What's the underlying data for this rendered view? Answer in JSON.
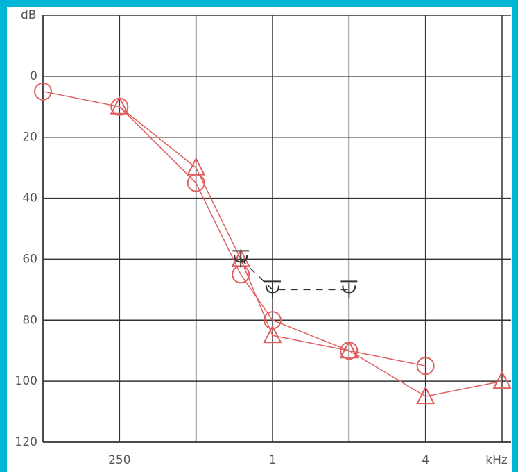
{
  "chart_data": {
    "type": "line",
    "y_label": "dB",
    "x_label": "kHz",
    "xlog": true,
    "xlim": [
      125,
      8000
    ],
    "xticks": [
      250,
      {
        "value": 1000,
        "label": "1"
      },
      {
        "value": 4000,
        "label": "4"
      }
    ],
    "xminor": [
      125,
      500,
      2000,
      8000
    ],
    "ylim": [
      120,
      -20
    ],
    "yticks": [
      0,
      20,
      40,
      60,
      80,
      100,
      120
    ],
    "grid": true,
    "series": [
      {
        "marker": "circle",
        "color": "#e06060",
        "dash": false,
        "x": [
          125,
          250,
          500,
          750,
          1000,
          2000,
          4000
        ],
        "values": [
          5,
          10,
          35,
          65,
          80,
          90,
          95
        ]
      },
      {
        "marker": "triangle",
        "color": "#e06060",
        "dash": false,
        "x": [
          250,
          500,
          750,
          1000,
          2000,
          4000,
          8000
        ],
        "values": [
          10,
          30,
          60,
          85,
          90,
          105,
          100
        ]
      },
      {
        "marker": "bone",
        "color": "#333333",
        "dash": true,
        "x": [
          750,
          1000,
          2000
        ],
        "values": [
          60,
          70,
          70
        ]
      }
    ]
  }
}
